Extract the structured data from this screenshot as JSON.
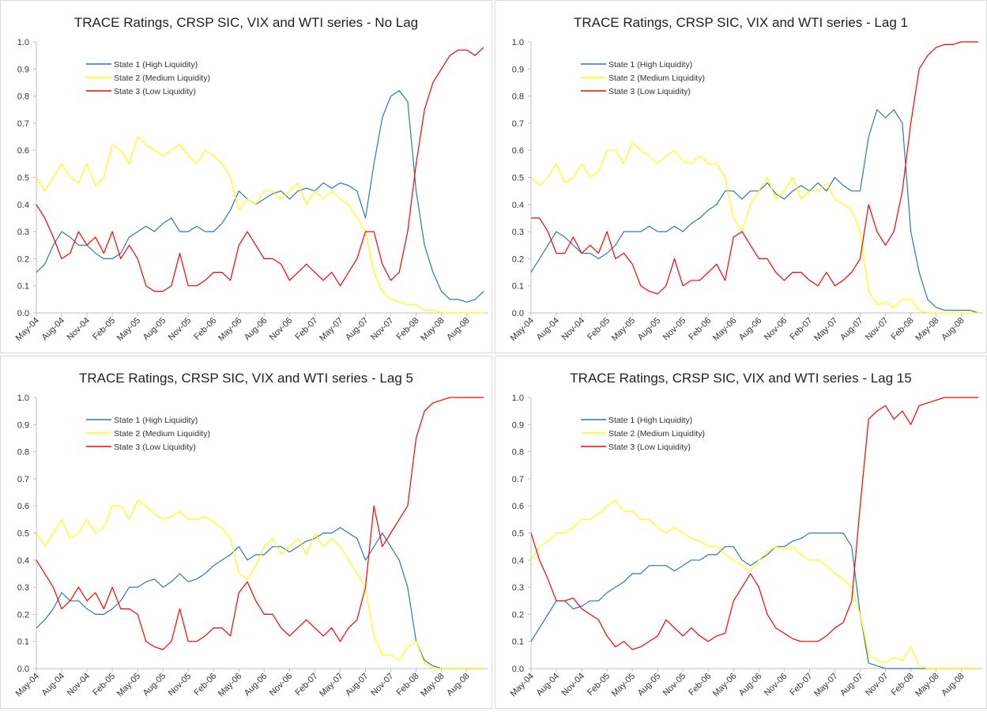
{
  "chart_data": [
    {
      "type": "line",
      "title": "TRACE Ratings, CRSP SIC, VIX and WTI series - No Lag",
      "categories": [
        "May-04",
        null,
        null,
        "Aug-04",
        null,
        null,
        "Nov-04",
        null,
        null,
        "Feb-05",
        null,
        null,
        "May-05",
        null,
        null,
        "Aug-05",
        null,
        null,
        "Nov-05",
        null,
        null,
        "Feb-06",
        null,
        null,
        "May-06",
        null,
        null,
        "Aug-06",
        null,
        null,
        "Nov-06",
        null,
        null,
        "Feb-07",
        null,
        null,
        "May-07",
        null,
        null,
        "Aug-07",
        null,
        null,
        "Nov-07",
        null,
        null,
        "Feb-08",
        null,
        null,
        "May-08",
        null,
        null,
        "Aug-08",
        null,
        null
      ],
      "ylim": [
        0,
        1
      ],
      "yticks": [
        {
          "value": 0,
          "label": "0.0"
        },
        0.1,
        0.2,
        0.3,
        0.4,
        0.5,
        0.6,
        0.7,
        0.8,
        0.9,
        {
          "value": 1,
          "label": "1.0"
        }
      ],
      "grid": false,
      "series": [
        {
          "name": "State 1 (High Liquidity)",
          "color": "#2e75b6",
          "values": [
            0.15,
            0.18,
            0.25,
            0.3,
            0.28,
            0.25,
            0.25,
            0.22,
            0.2,
            0.2,
            0.22,
            0.28,
            0.3,
            0.32,
            0.3,
            0.33,
            0.35,
            0.3,
            0.3,
            0.32,
            0.3,
            0.3,
            0.33,
            0.38,
            0.45,
            0.42,
            0.4,
            0.42,
            0.44,
            0.45,
            0.42,
            0.45,
            0.46,
            0.45,
            0.48,
            0.46,
            0.48,
            0.47,
            0.45,
            0.35,
            0.55,
            0.72,
            0.8,
            0.82,
            0.78,
            0.45,
            0.25,
            0.15,
            0.08,
            0.05,
            0.05,
            0.04,
            0.05,
            0.08
          ]
        },
        {
          "name": "State 2 (Medium Liquidity)",
          "color": "#ffff00",
          "values": [
            0.5,
            0.45,
            0.5,
            0.55,
            0.5,
            0.48,
            0.55,
            0.47,
            0.5,
            0.62,
            0.6,
            0.55,
            0.65,
            0.62,
            0.6,
            0.58,
            0.6,
            0.62,
            0.58,
            0.55,
            0.6,
            0.58,
            0.55,
            0.5,
            0.38,
            0.42,
            0.4,
            0.45,
            0.45,
            0.42,
            0.45,
            0.48,
            0.4,
            0.45,
            0.42,
            0.45,
            0.42,
            0.4,
            0.35,
            0.3,
            0.15,
            0.08,
            0.05,
            0.04,
            0.03,
            0.03,
            0.01,
            0.01,
            0,
            0,
            0,
            0,
            0,
            0
          ]
        },
        {
          "name": "State 3 (Low Liquidity)",
          "color": "#ff0000",
          "values": [
            0.4,
            0.35,
            0.28,
            0.2,
            0.22,
            0.3,
            0.25,
            0.28,
            0.22,
            0.3,
            0.2,
            0.25,
            0.2,
            0.1,
            0.08,
            0.08,
            0.1,
            0.22,
            0.1,
            0.1,
            0.12,
            0.15,
            0.15,
            0.12,
            0.25,
            0.3,
            0.25,
            0.2,
            0.2,
            0.18,
            0.12,
            0.15,
            0.18,
            0.15,
            0.12,
            0.15,
            0.1,
            0.15,
            0.2,
            0.3,
            0.3,
            0.18,
            0.12,
            0.15,
            0.3,
            0.55,
            0.75,
            0.85,
            0.9,
            0.95,
            0.97,
            0.97,
            0.95,
            0.98
          ]
        }
      ]
    },
    {
      "type": "line",
      "title": "TRACE Ratings, CRSP SIC, VIX and WTI series - Lag 1",
      "categories": [
        "May-04",
        null,
        null,
        "Aug-04",
        null,
        null,
        "Nov-04",
        null,
        null,
        "Feb-05",
        null,
        null,
        "May-05",
        null,
        null,
        "Aug-05",
        null,
        null,
        "Nov-05",
        null,
        null,
        "Feb-06",
        null,
        null,
        "May-06",
        null,
        null,
        "Aug-06",
        null,
        null,
        "Nov-06",
        null,
        null,
        "Feb-07",
        null,
        null,
        "May-07",
        null,
        null,
        "Aug-07",
        null,
        null,
        "Nov-07",
        null,
        null,
        "Feb-08",
        null,
        null,
        "May-08",
        null,
        null,
        "Aug-08",
        null,
        null
      ],
      "ylim": [
        0,
        1
      ],
      "yticks": [
        {
          "value": 0,
          "label": "0.0"
        },
        0.1,
        0.2,
        0.3,
        0.4,
        0.5,
        0.6,
        0.7,
        0.8,
        0.9,
        {
          "value": 1,
          "label": "1.0"
        }
      ],
      "grid": false,
      "series": [
        {
          "name": "State 1 (High Liquidity)",
          "color": "#2e75b6",
          "values": [
            0.15,
            0.2,
            0.25,
            0.3,
            0.28,
            0.25,
            0.22,
            0.22,
            0.2,
            0.22,
            0.25,
            0.3,
            0.3,
            0.3,
            0.32,
            0.3,
            0.3,
            0.32,
            0.3,
            0.33,
            0.35,
            0.38,
            0.4,
            0.45,
            0.45,
            0.42,
            0.45,
            0.45,
            0.48,
            0.44,
            0.42,
            0.45,
            0.47,
            0.45,
            0.48,
            0.45,
            0.5,
            0.47,
            0.45,
            0.45,
            0.65,
            0.75,
            0.72,
            0.75,
            0.7,
            0.3,
            0.15,
            0.05,
            0.02,
            0.01,
            0.01,
            0.01,
            0.01,
            0
          ]
        },
        {
          "name": "State 2 (Medium Liquidity)",
          "color": "#ffff00",
          "values": [
            0.5,
            0.47,
            0.5,
            0.55,
            0.48,
            0.5,
            0.55,
            0.5,
            0.52,
            0.6,
            0.6,
            0.55,
            0.63,
            0.6,
            0.58,
            0.55,
            0.58,
            0.6,
            0.56,
            0.55,
            0.58,
            0.55,
            0.55,
            0.5,
            0.35,
            0.3,
            0.4,
            0.45,
            0.5,
            0.42,
            0.45,
            0.5,
            0.42,
            0.45,
            0.45,
            0.48,
            0.42,
            0.4,
            0.38,
            0.3,
            0.08,
            0.03,
            0.04,
            0.02,
            0.05,
            0.05,
            0.01,
            0,
            0,
            0,
            0,
            0,
            0,
            0
          ]
        },
        {
          "name": "State 3 (Low Liquidity)",
          "color": "#ff0000",
          "values": [
            0.35,
            0.35,
            0.3,
            0.22,
            0.22,
            0.28,
            0.22,
            0.25,
            0.22,
            0.3,
            0.2,
            0.22,
            0.18,
            0.1,
            0.08,
            0.07,
            0.1,
            0.2,
            0.1,
            0.12,
            0.12,
            0.15,
            0.18,
            0.12,
            0.28,
            0.3,
            0.25,
            0.2,
            0.2,
            0.15,
            0.12,
            0.15,
            0.15,
            0.12,
            0.1,
            0.15,
            0.1,
            0.12,
            0.15,
            0.2,
            0.4,
            0.3,
            0.25,
            0.3,
            0.45,
            0.7,
            0.9,
            0.95,
            0.98,
            0.99,
            0.99,
            1,
            1,
            1
          ]
        }
      ]
    },
    {
      "type": "line",
      "title": "TRACE Ratings, CRSP SIC, VIX and WTI series - Lag 5",
      "categories": [
        "May-04",
        null,
        null,
        "Aug-04",
        null,
        null,
        "Nov-04",
        null,
        null,
        "Feb-05",
        null,
        null,
        "May-05",
        null,
        null,
        "Aug-05",
        null,
        null,
        "Nov-05",
        null,
        null,
        "Feb-06",
        null,
        null,
        "May-06",
        null,
        null,
        "Aug-06",
        null,
        null,
        "Nov-06",
        null,
        null,
        "Feb-07",
        null,
        null,
        "May-07",
        null,
        null,
        "Aug-07",
        null,
        null,
        "Nov-07",
        null,
        null,
        "Feb-08",
        null,
        null,
        "May-08",
        null,
        null,
        "Aug-08",
        null,
        null
      ],
      "ylim": [
        0,
        1
      ],
      "yticks": [
        {
          "value": 0,
          "label": "0.0"
        },
        0.1,
        0.2,
        0.3,
        0.4,
        0.5,
        0.6,
        0.7,
        0.8,
        0.9,
        {
          "value": 1,
          "label": "1.0"
        }
      ],
      "grid": false,
      "series": [
        {
          "name": "State 1 (High Liquidity)",
          "color": "#2e75b6",
          "values": [
            0.15,
            0.18,
            0.22,
            0.28,
            0.25,
            0.25,
            0.22,
            0.2,
            0.2,
            0.22,
            0.25,
            0.3,
            0.3,
            0.32,
            0.33,
            0.3,
            0.32,
            0.35,
            0.32,
            0.33,
            0.35,
            0.38,
            0.4,
            0.42,
            0.45,
            0.4,
            0.42,
            0.42,
            0.45,
            0.45,
            0.43,
            0.45,
            0.47,
            0.48,
            0.5,
            0.5,
            0.52,
            0.5,
            0.48,
            0.4,
            0.45,
            0.5,
            0.45,
            0.4,
            0.3,
            0.1,
            0.03,
            0.01,
            0,
            0,
            0,
            0,
            0,
            0
          ]
        },
        {
          "name": "State 2 (Medium Liquidity)",
          "color": "#ffff00",
          "values": [
            0.5,
            0.45,
            0.5,
            0.55,
            0.48,
            0.5,
            0.55,
            0.5,
            0.52,
            0.6,
            0.6,
            0.55,
            0.62,
            0.6,
            0.57,
            0.55,
            0.56,
            0.58,
            0.55,
            0.55,
            0.56,
            0.54,
            0.52,
            0.48,
            0.35,
            0.33,
            0.38,
            0.45,
            0.48,
            0.42,
            0.45,
            0.48,
            0.42,
            0.5,
            0.45,
            0.48,
            0.45,
            0.4,
            0.35,
            0.3,
            0.12,
            0.05,
            0.05,
            0.03,
            0.08,
            0.1,
            0.02,
            0,
            0,
            0,
            0,
            0,
            0,
            0
          ]
        },
        {
          "name": "State 3 (Low Liquidity)",
          "color": "#ff0000",
          "values": [
            0.4,
            0.35,
            0.3,
            0.22,
            0.25,
            0.3,
            0.25,
            0.28,
            0.22,
            0.3,
            0.22,
            0.22,
            0.2,
            0.1,
            0.08,
            0.07,
            0.1,
            0.22,
            0.1,
            0.1,
            0.12,
            0.15,
            0.15,
            0.12,
            0.28,
            0.32,
            0.25,
            0.2,
            0.2,
            0.15,
            0.12,
            0.15,
            0.18,
            0.15,
            0.12,
            0.15,
            0.1,
            0.15,
            0.18,
            0.3,
            0.6,
            0.45,
            0.5,
            0.55,
            0.6,
            0.85,
            0.95,
            0.98,
            0.99,
            1,
            1,
            1,
            1,
            1
          ]
        }
      ]
    },
    {
      "type": "line",
      "title": "TRACE Ratings, CRSP SIC, VIX and WTI series - Lag 15",
      "categories": [
        "May-04",
        null,
        null,
        "Aug-04",
        null,
        null,
        "Nov-04",
        null,
        null,
        "Feb-05",
        null,
        null,
        "May-05",
        null,
        null,
        "Aug-05",
        null,
        null,
        "Nov-05",
        null,
        null,
        "Feb-06",
        null,
        null,
        "May-06",
        null,
        null,
        "Aug-06",
        null,
        null,
        "Nov-06",
        null,
        null,
        "Feb-07",
        null,
        null,
        "May-07",
        null,
        null,
        "Aug-07",
        null,
        null,
        "Nov-07",
        null,
        null,
        "Feb-08",
        null,
        null,
        "May-08",
        null,
        null,
        "Aug-08",
        null,
        null
      ],
      "ylim": [
        0,
        1
      ],
      "yticks": [
        {
          "value": 0,
          "label": "0.0"
        },
        0.1,
        0.2,
        0.3,
        0.4,
        0.5,
        0.6,
        0.7,
        0.8,
        0.9,
        {
          "value": 1,
          "label": "1.0"
        }
      ],
      "grid": false,
      "series": [
        {
          "name": "State 1 (High Liquidity)",
          "color": "#2e75b6",
          "values": [
            0.1,
            0.15,
            0.2,
            0.25,
            0.25,
            0.22,
            0.23,
            0.25,
            0.25,
            0.28,
            0.3,
            0.32,
            0.35,
            0.35,
            0.38,
            0.38,
            0.38,
            0.36,
            0.38,
            0.4,
            0.4,
            0.42,
            0.42,
            0.45,
            0.45,
            0.4,
            0.38,
            0.4,
            0.42,
            0.45,
            0.45,
            0.47,
            0.48,
            0.5,
            0.5,
            0.5,
            0.5,
            0.5,
            0.45,
            0.2,
            0.02,
            0.01,
            0,
            0,
            0,
            0,
            0,
            0,
            0,
            0,
            0,
            0,
            0,
            0
          ]
        },
        {
          "name": "State 2 (Medium Liquidity)",
          "color": "#ffff00",
          "values": [
            0.4,
            0.45,
            0.47,
            0.5,
            0.5,
            0.52,
            0.55,
            0.55,
            0.57,
            0.6,
            0.62,
            0.58,
            0.58,
            0.55,
            0.55,
            0.52,
            0.5,
            0.52,
            0.5,
            0.48,
            0.47,
            0.45,
            0.45,
            0.42,
            0.4,
            0.38,
            0.36,
            0.4,
            0.43,
            0.45,
            0.44,
            0.45,
            0.42,
            0.4,
            0.4,
            0.38,
            0.35,
            0.33,
            0.3,
            0.2,
            0.05,
            0.03,
            0.02,
            0.04,
            0.03,
            0.08,
            0.01,
            0,
            0,
            0,
            0,
            0,
            0,
            0
          ]
        },
        {
          "name": "State 3 (Low Liquidity)",
          "color": "#ff0000",
          "values": [
            0.5,
            0.4,
            0.33,
            0.25,
            0.25,
            0.26,
            0.22,
            0.2,
            0.18,
            0.12,
            0.08,
            0.1,
            0.07,
            0.08,
            0.1,
            0.12,
            0.18,
            0.15,
            0.12,
            0.15,
            0.12,
            0.1,
            0.12,
            0.13,
            0.25,
            0.3,
            0.35,
            0.3,
            0.2,
            0.15,
            0.13,
            0.11,
            0.1,
            0.1,
            0.1,
            0.12,
            0.15,
            0.17,
            0.25,
            0.6,
            0.92,
            0.95,
            0.97,
            0.92,
            0.95,
            0.9,
            0.97,
            0.98,
            0.99,
            1,
            1,
            1,
            1,
            1
          ]
        }
      ]
    }
  ]
}
